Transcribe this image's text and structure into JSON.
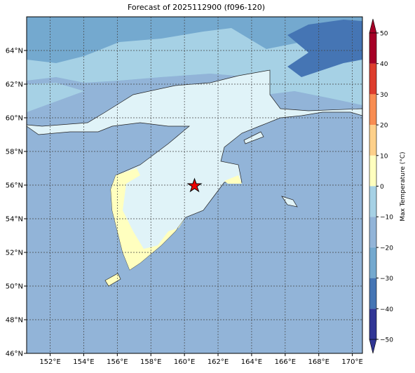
{
  "chart_data": {
    "type": "filled-contour-map",
    "title": "Forecast of 2025112900 (f096-120)",
    "xlim": [
      150.6,
      170.6
    ],
    "ylim": [
      46,
      66
    ],
    "xticks": [
      {
        "value": 152,
        "label": "152°E"
      },
      {
        "value": 154,
        "label": "154°E"
      },
      {
        "value": 156,
        "label": "156°E"
      },
      {
        "value": 158,
        "label": "158°E"
      },
      {
        "value": 160,
        "label": "160°E"
      },
      {
        "value": 162,
        "label": "162°E"
      },
      {
        "value": 164,
        "label": "164°E"
      },
      {
        "value": 166,
        "label": "166°E"
      },
      {
        "value": 168,
        "label": "168°E"
      },
      {
        "value": 170,
        "label": "170°E"
      }
    ],
    "yticks": [
      {
        "value": 46,
        "label": "46°N"
      },
      {
        "value": 48,
        "label": "48°N"
      },
      {
        "value": 50,
        "label": "50°N"
      },
      {
        "value": 52,
        "label": "52°N"
      },
      {
        "value": 54,
        "label": "54°N"
      },
      {
        "value": 56,
        "label": "56°N"
      },
      {
        "value": 58,
        "label": "58°N"
      },
      {
        "value": 60,
        "label": "60°N"
      },
      {
        "value": 62,
        "label": "62°N"
      },
      {
        "value": 64,
        "label": "64°N"
      }
    ],
    "grid": true,
    "colorbar": {
      "label": "Max Temperature (°C)",
      "lim": [
        -50,
        50
      ],
      "ticks": [
        {
          "value": -50,
          "label": "−50"
        },
        {
          "value": -40,
          "label": "−40"
        },
        {
          "value": -30,
          "label": "−30"
        },
        {
          "value": -20,
          "label": "−20"
        },
        {
          "value": -10,
          "label": "−10"
        },
        0,
        10,
        20,
        30,
        40,
        50
      ],
      "colors": [
        "#313695",
        "#4575b4",
        "#74a9cf",
        "#92b4d8",
        "#a6d1e5",
        "#e0f3f8",
        "#ffffbf",
        "#fdd08a",
        "#f88d52",
        "#dd3d2d",
        "#a50026"
      ]
    }
  }
}
